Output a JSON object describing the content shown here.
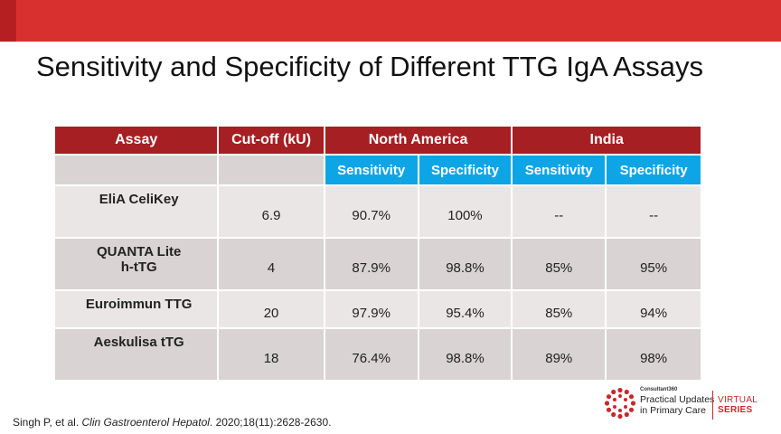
{
  "slide": {
    "title": "Sensitivity and Specificity of Different TTG IgA Assays"
  },
  "table": {
    "headers": {
      "assay": "Assay",
      "cutoff": "Cut-off (kU)",
      "north_america": "North America",
      "india": "India",
      "sensitivity": "Sensitivity",
      "specificity": "Specificity"
    },
    "rows": [
      {
        "assay": "EliA CeliKey",
        "cutoff": "6.9",
        "na_sens": "90.7%",
        "na_spec": "100%",
        "in_sens": "--",
        "in_spec": "--"
      },
      {
        "assay_line1": "QUANTA Lite",
        "assay_line2": "h-tTG",
        "cutoff": "4",
        "na_sens": "87.9%",
        "na_spec": "98.8%",
        "in_sens": "85%",
        "in_spec": "95%"
      },
      {
        "assay": "Euroimmun TTG",
        "cutoff": "20",
        "na_sens": "97.9%",
        "na_spec": "95.4%",
        "in_sens": "85%",
        "in_spec": "94%"
      },
      {
        "assay": "Aeskulisa tTG",
        "cutoff": "18",
        "na_sens": "76.4%",
        "na_spec": "98.8%",
        "in_sens": "89%",
        "in_spec": "98%"
      }
    ]
  },
  "citation": {
    "authors": "Singh P, et al. ",
    "journal": "Clin Gastroenterol Hepatol",
    "details": ". 2020;18(11):2628-2630."
  },
  "logo": {
    "brand_small": "Consultant360",
    "line1": "Practical Updates",
    "line2": "in Primary Care",
    "series_line1": "VIRTUAL",
    "series_line2": "SERIES",
    "accent_color": "#c9282b"
  },
  "colors": {
    "top_band": "#d8302f",
    "header_red": "#a61f22",
    "subheader_blue": "#0ea5e6",
    "row_light": "#ebe6e6",
    "row_dark": "#d9d3d3"
  }
}
